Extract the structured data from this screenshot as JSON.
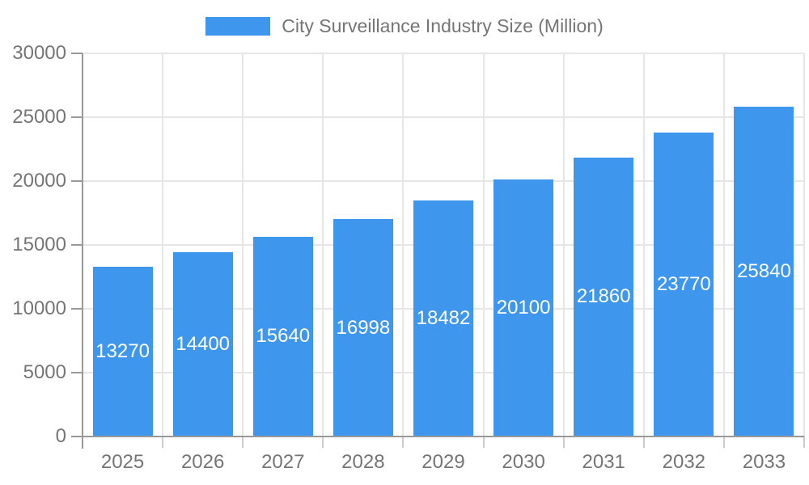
{
  "chart_data": {
    "type": "bar",
    "title": "City Surveillance Industry Size (Million)",
    "categories": [
      "2025",
      "2026",
      "2027",
      "2028",
      "2029",
      "2030",
      "2031",
      "2032",
      "2033"
    ],
    "series": [
      {
        "name": "City Surveillance Industry Size (Million)",
        "values": [
          13270,
          14400,
          15640,
          16998,
          18482,
          20100,
          21860,
          23770,
          25840
        ]
      }
    ],
    "xlabel": "",
    "ylabel": "",
    "ylim": [
      0,
      30000
    ],
    "yticks": [
      0,
      5000,
      10000,
      15000,
      20000,
      25000,
      30000
    ],
    "grid": true,
    "legend_position": "top",
    "bar_color": "#3E96ED",
    "bar_label_color": "#FFFFFF",
    "axis_text_color": "#757575",
    "gridline_color": "#E6E6E6",
    "axis_line_color": "#999999",
    "category_tick_color": "#CCCCCC"
  }
}
